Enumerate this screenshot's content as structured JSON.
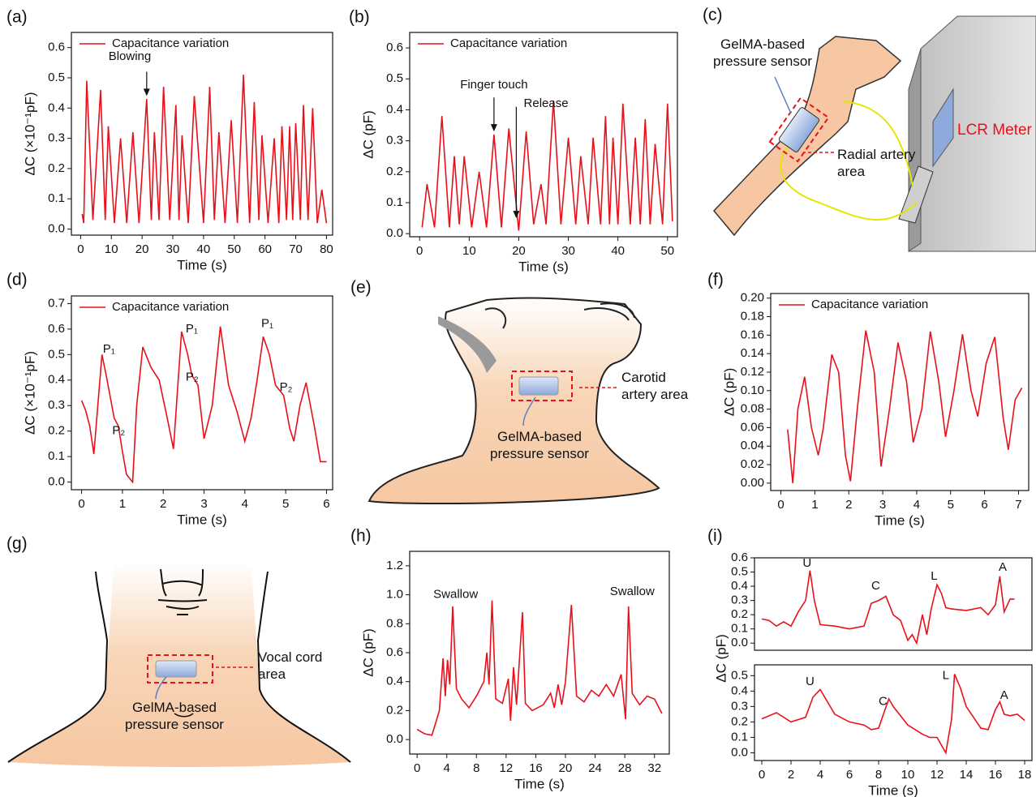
{
  "chart_data": [
    {
      "type": "line",
      "panel_label": "(a)",
      "xlabel": "Time (s)",
      "ylabel": "ΔC (×10⁻¹pF)",
      "xlim": [
        -3,
        82
      ],
      "ylim": [
        -0.02,
        0.65
      ],
      "xticks": [
        0,
        10,
        20,
        30,
        40,
        50,
        60,
        70,
        80
      ],
      "yticks": [
        {
          "value": 0,
          "label": "0.0"
        },
        0.1,
        0.2,
        0.3,
        0.4,
        0.5,
        0.6
      ],
      "legend": "upper left",
      "annotations": [
        "Blowing"
      ],
      "x": [
        0.5,
        1,
        2,
        4,
        6.5,
        8,
        9,
        11,
        13,
        15,
        17,
        19,
        21.5,
        23,
        24,
        25.5,
        27,
        29,
        31,
        32,
        33,
        35,
        37,
        40,
        42,
        43.5,
        45,
        47,
        49,
        51,
        53,
        55,
        56.5,
        58,
        59,
        61,
        63,
        64.5,
        65.5,
        67,
        68,
        69,
        70,
        71.5,
        72.5,
        74,
        75.5,
        77,
        78.5,
        80
      ],
      "series": [
        {
          "name": "Capacitance variation",
          "color": "#e8101a",
          "values": [
            0.05,
            0.02,
            0.49,
            0.03,
            0.46,
            0.03,
            0.34,
            0.02,
            0.3,
            0.02,
            0.32,
            0.02,
            0.43,
            0.03,
            0.32,
            0.03,
            0.47,
            0.03,
            0.41,
            0.03,
            0.31,
            0.02,
            0.44,
            0.02,
            0.47,
            0.03,
            0.32,
            0.02,
            0.36,
            0.02,
            0.51,
            0.02,
            0.42,
            0.03,
            0.31,
            0.02,
            0.3,
            0.02,
            0.34,
            0.03,
            0.34,
            0.03,
            0.35,
            0.03,
            0.41,
            0.03,
            0.4,
            0.02,
            0.13,
            0.02
          ]
        }
      ]
    },
    {
      "type": "line",
      "panel_label": "(b)",
      "xlabel": "Time (s)",
      "ylabel": "ΔC (pF)",
      "xlim": [
        -2,
        52
      ],
      "ylim": [
        -0.01,
        0.65
      ],
      "xticks": [
        0,
        10,
        20,
        30,
        40,
        50
      ],
      "yticks": [
        {
          "value": 0,
          "label": "0.0"
        },
        0.1,
        0.2,
        0.3,
        0.4,
        0.5,
        0.6
      ],
      "legend": "upper left",
      "annotations": [
        "Finger touch",
        "Release"
      ],
      "x": [
        0.5,
        1.5,
        3,
        4.5,
        6,
        7,
        8,
        9,
        10.5,
        12,
        13.5,
        15,
        16.5,
        18,
        20,
        21.5,
        23,
        24.5,
        25.5,
        27,
        28.5,
        30,
        31.5,
        32.5,
        34,
        35,
        36.5,
        37.5,
        38.3,
        39,
        40,
        41,
        42.5,
        43.5,
        44.5,
        45.5,
        46.5,
        47.5,
        49,
        50,
        51
      ],
      "series": [
        {
          "name": "Capacitance variation",
          "color": "#e8101a",
          "values": [
            0.02,
            0.16,
            0.02,
            0.38,
            0.02,
            0.25,
            0.03,
            0.25,
            0.02,
            0.2,
            0.02,
            0.32,
            0.02,
            0.34,
            0.01,
            0.33,
            0.03,
            0.16,
            0.03,
            0.43,
            0.03,
            0.31,
            0.03,
            0.25,
            0.03,
            0.31,
            0.03,
            0.38,
            0.03,
            0.31,
            0.03,
            0.42,
            0.03,
            0.31,
            0.03,
            0.37,
            0.03,
            0.29,
            0.03,
            0.42,
            0.04
          ]
        }
      ]
    },
    {
      "type": "line",
      "panel_label": "(d)",
      "xlabel": "Time (s)",
      "ylabel": "ΔC (×10⁻¹pF)",
      "xlim": [
        -0.25,
        6.15
      ],
      "ylim": [
        -0.03,
        0.73
      ],
      "xticks": [
        0,
        1,
        2,
        3,
        4,
        5,
        6
      ],
      "yticks": [
        {
          "value": 0,
          "label": "0.0"
        },
        0.1,
        0.2,
        0.3,
        0.4,
        0.5,
        0.6,
        0.7
      ],
      "legend": "upper left",
      "annotations": [
        "P₁",
        "P₂",
        "P₁",
        "P₂",
        "P₁",
        "P₂"
      ],
      "x": [
        0,
        0.1,
        0.2,
        0.3,
        0.5,
        0.6,
        0.8,
        0.9,
        1.0,
        1.1,
        1.25,
        1.35,
        1.5,
        1.7,
        1.9,
        2.1,
        2.25,
        2.45,
        2.6,
        2.7,
        2.85,
        3.0,
        3.2,
        3.4,
        3.6,
        3.8,
        4.0,
        4.15,
        4.3,
        4.45,
        4.6,
        4.75,
        4.95,
        5.1,
        5.2,
        5.35,
        5.5,
        5.7,
        5.85,
        6.0
      ],
      "series": [
        {
          "name": "Capacitance variation",
          "color": "#e8101a",
          "values": [
            0.32,
            0.28,
            0.22,
            0.11,
            0.5,
            0.42,
            0.25,
            0.22,
            0.12,
            0.03,
            0.0,
            0.3,
            0.53,
            0.45,
            0.4,
            0.25,
            0.13,
            0.59,
            0.5,
            0.42,
            0.38,
            0.17,
            0.3,
            0.61,
            0.38,
            0.28,
            0.16,
            0.25,
            0.4,
            0.57,
            0.5,
            0.38,
            0.34,
            0.21,
            0.16,
            0.3,
            0.39,
            0.22,
            0.08,
            0.08
          ]
        }
      ]
    },
    {
      "type": "line",
      "panel_label": "(f)",
      "xlabel": "Time (s)",
      "ylabel": "ΔC (pF)",
      "xlim": [
        -0.3,
        7.3
      ],
      "ylim": [
        -0.008,
        0.205
      ],
      "xticks": [
        0,
        1,
        2,
        3,
        4,
        5,
        6,
        7
      ],
      "yticks": [
        {
          "value": 0,
          "label": "0.00"
        },
        {
          "value": 0.02,
          "label": "0.02"
        },
        {
          "value": 0.04,
          "label": "0.04"
        },
        {
          "value": 0.06,
          "label": "0.06"
        },
        {
          "value": 0.08,
          "label": "0.08"
        },
        {
          "value": 0.1,
          "label": "0.10"
        },
        {
          "value": 0.12,
          "label": "0.12"
        },
        {
          "value": 0.14,
          "label": "0.14"
        },
        {
          "value": 0.16,
          "label": "0.16"
        },
        {
          "value": 0.18,
          "label": "0.18"
        },
        {
          "value": 0.2,
          "label": "0.20"
        }
      ],
      "legend": "upper left",
      "x": [
        0.2,
        0.35,
        0.5,
        0.7,
        0.9,
        1.1,
        1.25,
        1.5,
        1.7,
        1.9,
        2.05,
        2.25,
        2.5,
        2.75,
        2.95,
        3.2,
        3.45,
        3.7,
        3.9,
        4.15,
        4.4,
        4.65,
        4.85,
        5.1,
        5.35,
        5.6,
        5.8,
        6.05,
        6.3,
        6.55,
        6.7,
        6.9,
        7.1
      ],
      "series": [
        {
          "name": "Capacitance variation",
          "color": "#e8101a",
          "values": [
            0.058,
            0.0,
            0.08,
            0.115,
            0.06,
            0.03,
            0.06,
            0.139,
            0.12,
            0.03,
            0.002,
            0.08,
            0.165,
            0.12,
            0.018,
            0.08,
            0.152,
            0.11,
            0.044,
            0.08,
            0.164,
            0.11,
            0.05,
            0.1,
            0.161,
            0.1,
            0.072,
            0.13,
            0.158,
            0.07,
            0.036,
            0.09,
            0.103
          ]
        }
      ]
    },
    {
      "type": "line",
      "panel_label": "(h)",
      "xlabel": "Time (s)",
      "ylabel": "ΔC (pF)",
      "xlim": [
        -1,
        34
      ],
      "ylim": [
        -0.1,
        1.3
      ],
      "xticks": [
        0,
        4,
        8,
        12,
        16,
        20,
        24,
        28,
        32
      ],
      "yticks": [
        {
          "value": 0,
          "label": "0.0"
        },
        0.2,
        0.4,
        0.6,
        0.8,
        {
          "value": 1,
          "label": "1.0"
        },
        1.2
      ],
      "annotations": [
        "Swallow",
        "Swallow"
      ],
      "color": "#e8101a",
      "x": [
        0,
        1,
        2,
        3,
        3.5,
        3.8,
        4.1,
        4.4,
        4.8,
        5.3,
        6,
        7,
        8,
        9,
        9.4,
        9.7,
        10.1,
        10.6,
        11.5,
        12.3,
        12.6,
        13,
        13.4,
        14.2,
        14.6,
        15.5,
        17,
        18,
        18.5,
        19,
        19.5,
        20,
        20.8,
        21.5,
        22.5,
        23.5,
        24.5,
        25.5,
        26.5,
        27.5,
        28.1,
        28.5,
        29,
        30,
        31,
        32,
        33
      ],
      "values": [
        0.07,
        0.04,
        0.03,
        0.2,
        0.56,
        0.3,
        0.55,
        0.38,
        0.92,
        0.35,
        0.28,
        0.22,
        0.3,
        0.4,
        0.6,
        0.38,
        0.96,
        0.28,
        0.25,
        0.42,
        0.13,
        0.5,
        0.24,
        0.88,
        0.25,
        0.2,
        0.24,
        0.32,
        0.22,
        0.38,
        0.24,
        0.4,
        0.93,
        0.3,
        0.26,
        0.34,
        0.3,
        0.38,
        0.3,
        0.45,
        0.14,
        0.92,
        0.32,
        0.24,
        0.3,
        0.28,
        0.18
      ]
    },
    {
      "type": "line",
      "panel_label": "(i)",
      "ylabel": "ΔC (pF)",
      "xlim": [
        -0.5,
        18.5
      ],
      "ylim": [
        -0.05,
        0.6
      ],
      "yticks": [
        {
          "value": 0,
          "label": "0.0"
        },
        0.1,
        0.2,
        0.3,
        0.4,
        0.5,
        0.6
      ],
      "annotations": [
        "U",
        "C",
        "L",
        "A"
      ],
      "color": "#e8101a",
      "x": [
        0,
        0.5,
        1,
        1.5,
        2,
        2.5,
        3,
        3.3,
        3.6,
        4,
        5,
        6,
        7,
        7.5,
        8,
        8.5,
        9,
        9.5,
        10,
        10.3,
        10.6,
        11,
        11.3,
        11.6,
        12,
        12.3,
        12.6,
        13,
        14,
        15,
        15.5,
        16,
        16.3,
        16.6,
        17,
        17.3
      ],
      "values": [
        0.17,
        0.16,
        0.12,
        0.15,
        0.12,
        0.22,
        0.3,
        0.51,
        0.3,
        0.13,
        0.12,
        0.1,
        0.12,
        0.28,
        0.3,
        0.33,
        0.2,
        0.16,
        0.02,
        0.06,
        0.0,
        0.2,
        0.06,
        0.24,
        0.41,
        0.35,
        0.25,
        0.24,
        0.23,
        0.25,
        0.2,
        0.27,
        0.47,
        0.22,
        0.31,
        0.31
      ]
    },
    {
      "type": "line",
      "xlabel": "Time (s)",
      "xlim": [
        -0.5,
        18.5
      ],
      "ylim": [
        -0.05,
        0.57
      ],
      "xticks": [
        0,
        2,
        4,
        6,
        8,
        10,
        12,
        14,
        16,
        18
      ],
      "yticks": [
        {
          "value": 0,
          "label": "0.0"
        },
        0.1,
        0.2,
        0.3,
        0.4,
        0.5
      ],
      "annotations": [
        "U",
        "C",
        "L",
        "A"
      ],
      "color": "#e8101a",
      "x": [
        0,
        1,
        2,
        3,
        3.5,
        4,
        5,
        6,
        7,
        7.5,
        8,
        8.7,
        9,
        10,
        11,
        11.5,
        12,
        12.6,
        13,
        13.2,
        13.6,
        14,
        15,
        15.5,
        16,
        16.3,
        16.6,
        17,
        17.5,
        18
      ],
      "values": [
        0.22,
        0.26,
        0.2,
        0.23,
        0.36,
        0.41,
        0.25,
        0.2,
        0.18,
        0.15,
        0.16,
        0.35,
        0.3,
        0.18,
        0.12,
        0.1,
        0.1,
        0.0,
        0.22,
        0.51,
        0.42,
        0.3,
        0.16,
        0.15,
        0.28,
        0.33,
        0.25,
        0.24,
        0.25,
        0.21
      ]
    }
  ],
  "diagrams": [
    {
      "panel_label": "(c)",
      "labels": [
        "GelMA-based pressure sensor",
        "Radial artery area",
        "LCR Meter"
      ]
    },
    {
      "panel_label": "(e)",
      "labels": [
        "Carotid artery area",
        "GelMA-based pressure sensor"
      ]
    },
    {
      "panel_label": "(g)",
      "labels": [
        "Vocal cord area",
        "GelMA-based pressure sensor"
      ]
    }
  ]
}
